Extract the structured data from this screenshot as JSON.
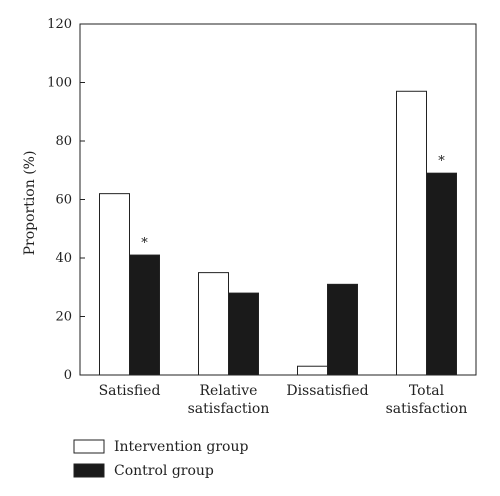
{
  "chart_data": {
    "type": "bar",
    "title": "",
    "xlabel": "",
    "ylabel": "Proportion (%)",
    "ylim": [
      0,
      120
    ],
    "yticks": [
      0,
      20,
      40,
      60,
      80,
      100,
      120
    ],
    "categories": [
      [
        "Satisfied"
      ],
      [
        "Relative",
        "satisfaction"
      ],
      [
        "Dissatisfied"
      ],
      [
        "Total",
        "satisfaction"
      ]
    ],
    "series": [
      {
        "name": "Intervention group",
        "color": "#ffffff",
        "values": [
          62,
          35,
          3,
          97
        ]
      },
      {
        "name": "Control group",
        "color": "#1a1a1a",
        "values": [
          41,
          28,
          31,
          69
        ]
      }
    ],
    "annotations": [
      {
        "category_index": 0,
        "series_index": 1,
        "text": "*"
      },
      {
        "category_index": 3,
        "series_index": 1,
        "text": "*"
      }
    ],
    "grid": false,
    "legend_position": "bottom-left"
  }
}
